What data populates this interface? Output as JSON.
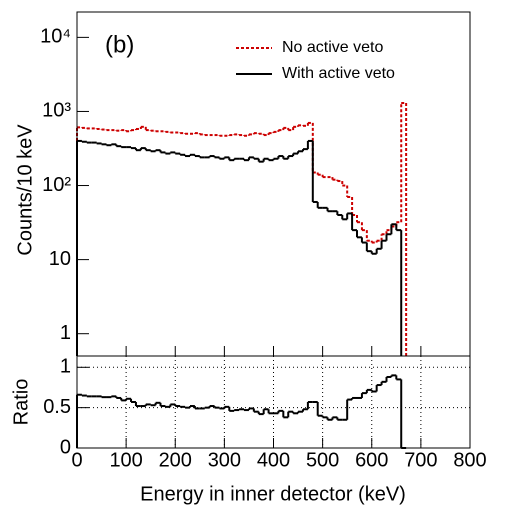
{
  "chart_data": [
    {
      "type": "histogram",
      "log_y": true,
      "ylabel": "Counts/10 keV",
      "annotation": "(b)",
      "legend": "top-right",
      "xlim": [
        0,
        800
      ],
      "ylim": [
        0.5,
        22000
      ],
      "yticks": [
        1,
        10,
        {
          "value": 100,
          "label": "10²"
        },
        {
          "value": 1000,
          "label": "10³"
        },
        {
          "value": 10000,
          "label": "10⁴"
        }
      ],
      "bins": [
        0,
        10,
        20,
        30,
        40,
        50,
        60,
        70,
        80,
        90,
        100,
        110,
        120,
        130,
        140,
        150,
        160,
        170,
        180,
        190,
        200,
        210,
        220,
        230,
        240,
        250,
        260,
        270,
        280,
        290,
        300,
        310,
        320,
        330,
        340,
        350,
        360,
        370,
        380,
        390,
        400,
        410,
        420,
        430,
        440,
        450,
        460,
        470,
        480,
        490,
        500,
        510,
        520,
        530,
        540,
        550,
        560,
        570,
        580,
        590,
        600,
        610,
        620,
        630,
        640,
        650,
        660,
        670
      ],
      "series": [
        {
          "name": "No active veto",
          "color": "#cc0000",
          "dashed": true,
          "values": [
            610,
            600,
            590,
            590,
            580,
            570,
            560,
            560,
            550,
            560,
            540,
            560,
            580,
            620,
            560,
            550,
            540,
            540,
            530,
            520,
            520,
            510,
            500,
            500,
            510,
            490,
            480,
            480,
            480,
            470,
            470,
            480,
            490,
            480,
            470,
            490,
            510,
            500,
            480,
            510,
            530,
            560,
            600,
            560,
            620,
            650,
            640,
            700,
            150,
            140,
            130,
            130,
            120,
            115,
            100,
            70,
            40,
            32,
            25,
            18,
            17,
            18,
            22,
            25,
            28,
            32,
            1300
          ]
        },
        {
          "name": "With active veto",
          "color": "#000000",
          "dashed": false,
          "values": [
            400,
            390,
            380,
            380,
            370,
            360,
            350,
            360,
            340,
            330,
            330,
            320,
            300,
            320,
            300,
            290,
            300,
            280,
            270,
            280,
            270,
            260,
            250,
            260,
            250,
            240,
            240,
            250,
            240,
            230,
            240,
            220,
            230,
            230,
            220,
            240,
            230,
            210,
            230,
            220,
            230,
            250,
            230,
            250,
            270,
            290,
            310,
            400,
            60,
            50,
            50,
            45,
            45,
            40,
            35,
            42,
            25,
            20,
            17,
            13,
            12,
            14,
            18,
            22,
            30,
            25,
            null
          ]
        }
      ]
    },
    {
      "type": "histogram",
      "ylabel": "Ratio",
      "xlabel": "Energy in inner detector (keV)",
      "grid": true,
      "color": "#000000",
      "xlim": [
        0,
        800
      ],
      "ylim": [
        0,
        1.14
      ],
      "xticks": [
        0,
        100,
        200,
        300,
        400,
        500,
        600,
        700,
        800
      ],
      "yticks": [
        0,
        0.5,
        1
      ],
      "bins": [
        0,
        10,
        20,
        30,
        40,
        50,
        60,
        70,
        80,
        90,
        100,
        110,
        120,
        130,
        140,
        150,
        160,
        170,
        180,
        190,
        200,
        210,
        220,
        230,
        240,
        250,
        260,
        270,
        280,
        290,
        300,
        310,
        320,
        330,
        340,
        350,
        360,
        370,
        380,
        390,
        400,
        410,
        420,
        430,
        440,
        450,
        460,
        470,
        480,
        490,
        500,
        510,
        520,
        530,
        540,
        550,
        560,
        570,
        580,
        590,
        600,
        610,
        620,
        630,
        640,
        650,
        660,
        670
      ],
      "values": [
        0.66,
        0.65,
        0.64,
        0.64,
        0.64,
        0.63,
        0.63,
        0.64,
        0.62,
        0.59,
        0.61,
        0.57,
        0.52,
        0.52,
        0.54,
        0.53,
        0.56,
        0.52,
        0.51,
        0.54,
        0.52,
        0.51,
        0.5,
        0.52,
        0.49,
        0.49,
        0.5,
        0.52,
        0.5,
        0.49,
        0.51,
        0.46,
        0.47,
        0.48,
        0.47,
        0.49,
        0.45,
        0.42,
        0.48,
        0.43,
        0.43,
        0.46,
        0.38,
        0.45,
        0.43,
        0.45,
        0.48,
        0.57,
        0.57,
        0.4,
        0.38,
        0.35,
        0.38,
        0.35,
        0.35,
        0.6,
        0.62,
        0.62,
        0.68,
        0.72,
        0.7,
        0.78,
        0.82,
        0.88,
        0.9,
        0.85,
        0
      ]
    }
  ]
}
